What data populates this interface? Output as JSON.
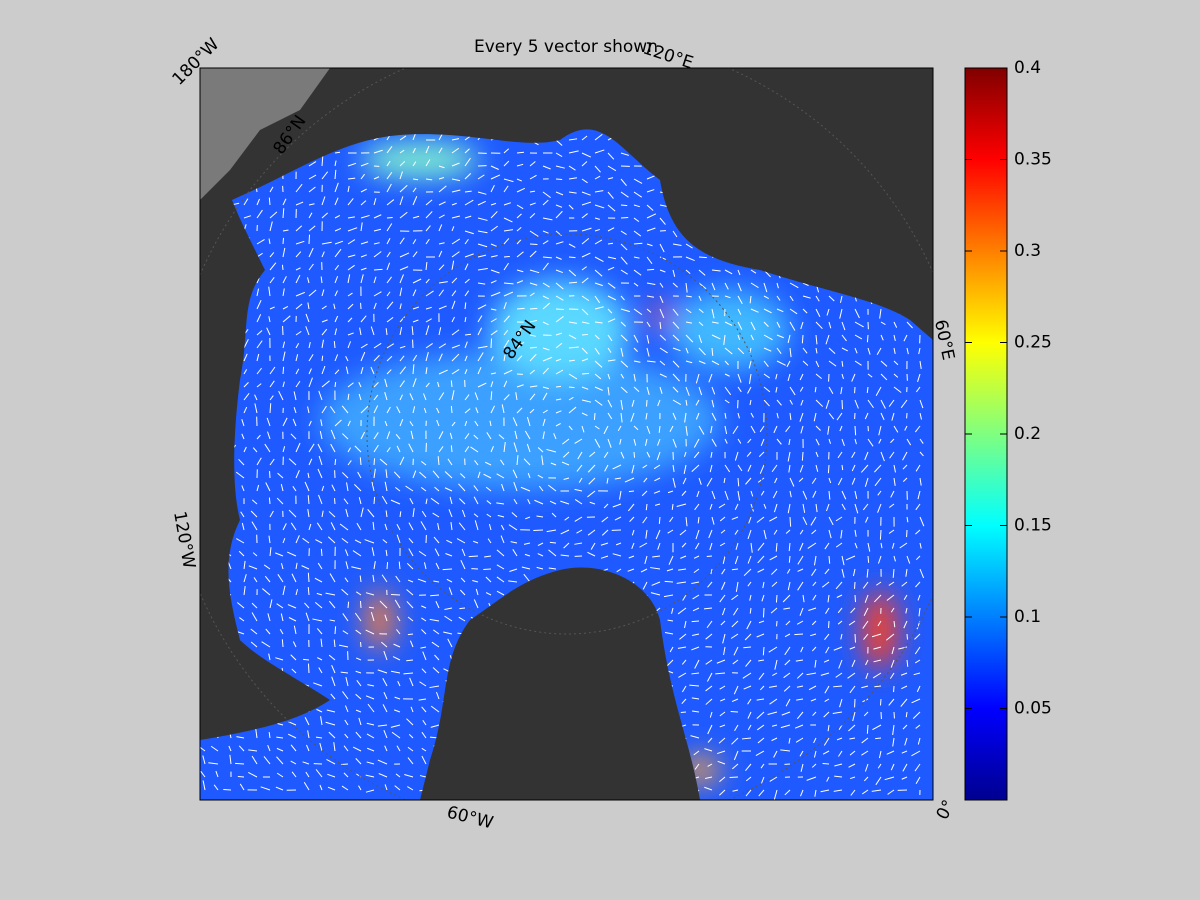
{
  "title": "Every 5 vector shown",
  "colorbar": {
    "lim": [
      0,
      0.4
    ],
    "ticks": [
      0.05,
      0.1,
      0.15,
      0.2,
      0.25,
      0.3,
      0.35,
      0.4
    ],
    "colormap": "jet"
  },
  "map_labels": [
    "180°W",
    "120°E",
    "60°E",
    "0°",
    "60°W",
    "120°W",
    "86°N",
    "84°N"
  ]
}
